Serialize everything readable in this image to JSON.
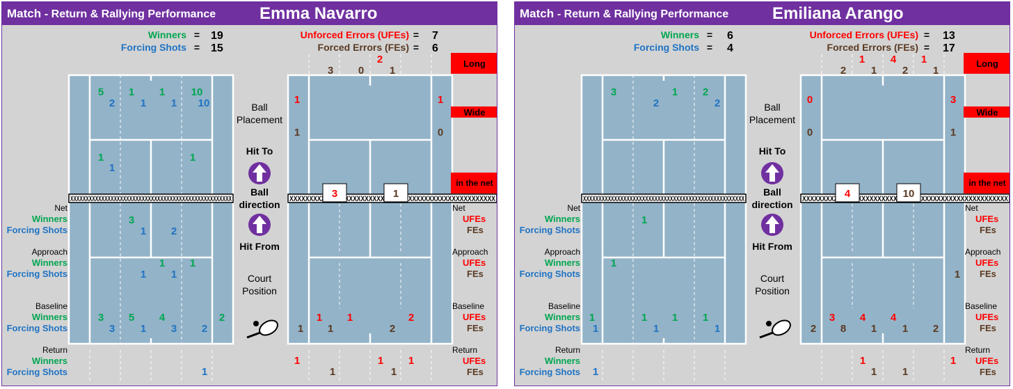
{
  "title_match": "Match",
  "title_sub": "- Return & Rallying Performance",
  "legend": {
    "winners": "Winners",
    "forcing": "Forcing Shots",
    "ufe": "Unforced Errors (UFEs)",
    "fe": "Forced Errors (FEs)",
    "eq": "=",
    "long": "Long",
    "wide": "Wide",
    "net": "in the net",
    "ball1": "Ball",
    "ball2": "Placement",
    "hitto": "Hit To",
    "bd1": "Ball",
    "bd2": "direction",
    "hitfrom": "Hit From",
    "cp1": "Court",
    "cp2": "Position",
    "rowNet": "Net",
    "rowApp": "Approach",
    "rowBase": "Baseline",
    "rowRet": "Return",
    "ufes": "UFEs",
    "fes": "FEs",
    "netband": "XXXXXXXXXXXXXXXXXXXXXXXXXXXXXXXXXXXXXXXXXXXXXXXXXXXX"
  },
  "colors": {
    "purple": "#7030a0",
    "green": "#00a650",
    "blue": "#1f73c3",
    "red": "#ff0000",
    "brown": "#5a3a22",
    "court": "#93b3c8",
    "bg": "#d3d3d3"
  },
  "players": [
    {
      "name": "Emma Navarro",
      "winners": "19",
      "forcing": "15",
      "ufe": "7",
      "fe": "6",
      "topFE": [
        "3",
        "0",
        "1"
      ],
      "topUFE": [
        "2"
      ],
      "sideL": {
        "ufe": "1",
        "fe": "1"
      },
      "sideR": {
        "ufe": "1",
        "fe": "0"
      },
      "netL": "3",
      "netR": "1",
      "deepW": [
        "5",
        "1",
        "1",
        "10"
      ],
      "deepF": [
        "2",
        "1",
        "1",
        "10"
      ],
      "shortW": [
        "1",
        "1"
      ],
      "shortF": [
        "1"
      ],
      "netW": [
        "3"
      ],
      "netF": [
        "1",
        "2"
      ],
      "appW": [
        "1",
        "1"
      ],
      "appF": [
        "1",
        "1"
      ],
      "baseW": [
        "3",
        "5",
        "4",
        "2"
      ],
      "baseF": [
        "3",
        "1",
        "3",
        "2"
      ],
      "retF": [
        "1"
      ],
      "baseUFE": [
        "1",
        "1",
        "2"
      ],
      "baseFE": [
        "1",
        "1",
        "2"
      ],
      "appFE": [],
      "retUFE": [
        "1",
        "1",
        "1"
      ],
      "retFE": [
        "1",
        "1"
      ]
    },
    {
      "name": "Emiliana Arango",
      "winners": "6",
      "forcing": "4",
      "ufe": "13",
      "fe": "17",
      "topFE": [
        "2",
        "1",
        "2",
        "1"
      ],
      "topUFE": [
        "1",
        "4",
        "1"
      ],
      "sideL": {
        "ufe": "0",
        "fe": "0"
      },
      "sideR": {
        "ufe": "3",
        "fe": "1"
      },
      "netL": "4",
      "netR": "10",
      "deepW": [
        "3",
        "1",
        "2"
      ],
      "deepF": [
        "2",
        "2"
      ],
      "shortW": [],
      "shortF": [],
      "netW": [
        "1"
      ],
      "netF": [],
      "appW": [
        "1"
      ],
      "appF": [],
      "baseW": [
        "1",
        "1",
        "1",
        "1"
      ],
      "baseF": [
        "1",
        "1",
        "1"
      ],
      "retF": [
        "1"
      ],
      "baseUFE": [
        "3",
        "4",
        "4"
      ],
      "baseFE": [
        "2",
        "8",
        "1",
        "1",
        "2"
      ],
      "appFE": [
        "1"
      ],
      "retUFE": [
        "1",
        "1"
      ],
      "retFE": [
        "1",
        "1"
      ]
    }
  ]
}
